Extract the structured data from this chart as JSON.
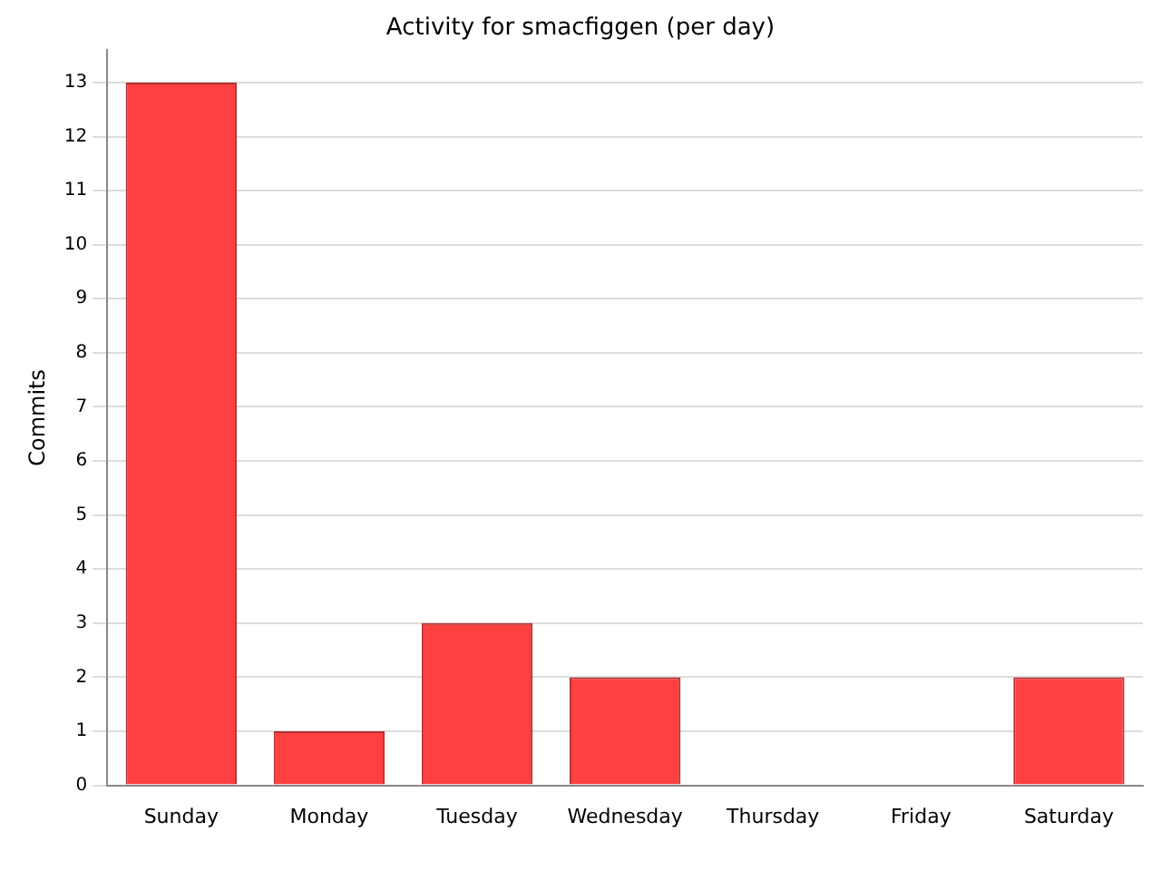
{
  "chart_data": {
    "type": "bar",
    "title": "Activity for smacfiggen (per day)",
    "ylabel": "Commits",
    "categories": [
      "Sunday",
      "Monday",
      "Tuesday",
      "Wednesday",
      "Thursday",
      "Friday",
      "Saturday"
    ],
    "values": [
      13,
      1,
      3,
      2,
      0,
      0,
      2
    ],
    "color": "#ff4040",
    "ylim": [
      0,
      13.6
    ],
    "yticks": [
      0,
      1,
      2,
      3,
      4,
      5,
      6,
      7,
      8,
      9,
      10,
      11,
      12,
      13
    ],
    "grid": "y",
    "legend": false
  }
}
